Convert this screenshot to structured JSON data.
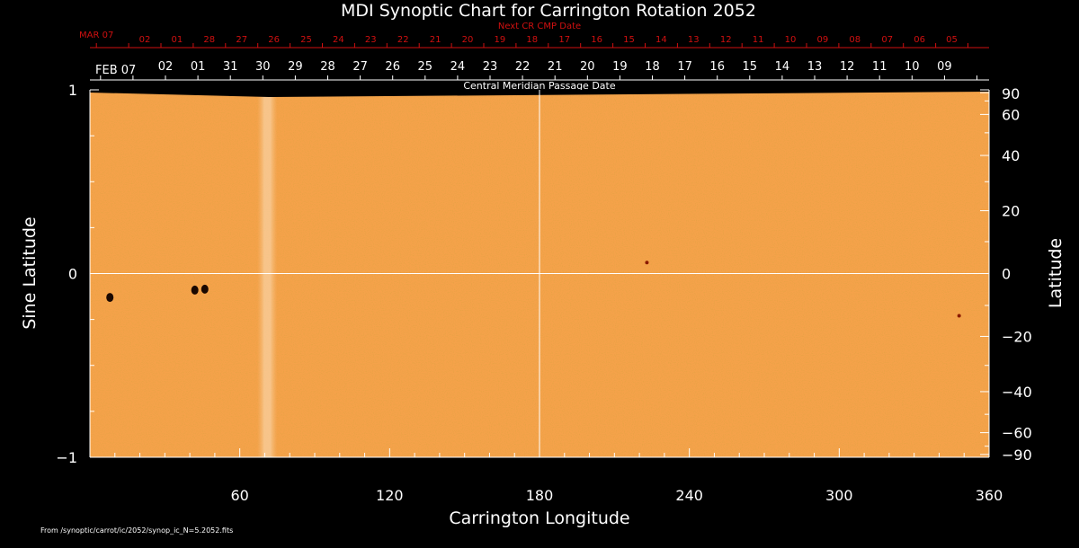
{
  "chart_data": {
    "type": "heatmap",
    "title": "MDI Synoptic Chart for Carrington Rotation 2052",
    "xlabel": "Carrington Longitude",
    "ylabel_left": "Sine Latitude",
    "ylabel_right": "Latitude",
    "xlim": [
      0,
      360
    ],
    "ylim": [
      -1,
      1
    ],
    "x_ticks": [
      60,
      120,
      180,
      240,
      300,
      360
    ],
    "left_ticks": [
      {
        "value": 1,
        "label": "1"
      },
      {
        "value": 0,
        "label": "0"
      },
      {
        "value": -1,
        "label": "−1"
      }
    ],
    "right_ticks": [
      90,
      60,
      40,
      20,
      0,
      -20,
      -40,
      -60,
      -90
    ],
    "right_tick_labels": [
      "90",
      "60",
      "40",
      "20",
      "0",
      "−20",
      "−40",
      "−60",
      "−90"
    ],
    "gridlines": {
      "x": 180,
      "y": 0
    },
    "background_color": "#f5a24a",
    "top_axis": {
      "label": "Central Meridian Passage Date",
      "start_label": "FEB 07",
      "dates": [
        "02",
        "01",
        "31",
        "30",
        "29",
        "28",
        "27",
        "26",
        "25",
        "24",
        "23",
        "22",
        "21",
        "20",
        "19",
        "18",
        "17",
        "16",
        "15",
        "14",
        "13",
        "12",
        "11",
        "10",
        "09"
      ]
    },
    "next_cr_axis": {
      "label": "Next CR CMP Date",
      "start_label": "MAR 07",
      "dates": [
        "02",
        "01",
        "28",
        "27",
        "26",
        "25",
        "24",
        "23",
        "22",
        "21",
        "20",
        "19",
        "18",
        "17",
        "16",
        "15",
        "14",
        "13",
        "12",
        "11",
        "10",
        "09",
        "08",
        "07",
        "06",
        "05"
      ],
      "color": "#d01010"
    },
    "features": [
      {
        "type": "sunspot",
        "lon": 8,
        "sinlat": -0.13
      },
      {
        "type": "sunspot",
        "lon": 42,
        "sinlat": -0.09
      },
      {
        "type": "sunspot",
        "lon": 46,
        "sinlat": -0.085
      },
      {
        "type": "small-region",
        "lon": 223,
        "sinlat": 0.06
      },
      {
        "type": "small-region",
        "lon": 348,
        "sinlat": -0.23
      },
      {
        "type": "data-gap-band",
        "lon_start": 67,
        "lon_end": 75
      }
    ]
  },
  "footer_text": "From /synoptic/carrot/ic/2052/synop_ic_N=5.2052.fits"
}
